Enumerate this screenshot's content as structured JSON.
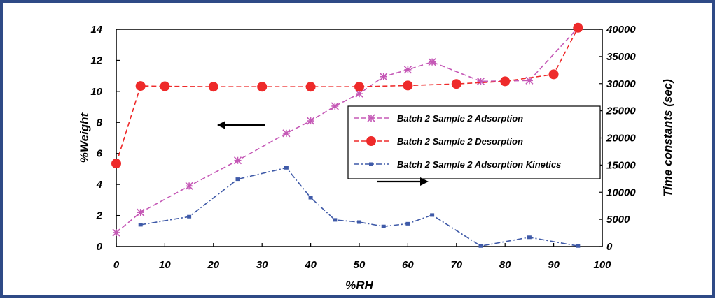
{
  "chart_data": {
    "type": "line",
    "xlabel": "%RH",
    "ylabel": "%Weight",
    "y2label": "Time constants (sec)",
    "xlim": [
      0,
      100
    ],
    "ylim": [
      0,
      14
    ],
    "y2lim": [
      0,
      40000
    ],
    "x_ticks": [
      0,
      10,
      20,
      30,
      40,
      50,
      60,
      70,
      80,
      90,
      100
    ],
    "y_ticks": [
      0,
      2,
      4,
      6,
      8,
      10,
      12,
      14
    ],
    "y2_ticks": [
      0,
      5000,
      10000,
      15000,
      20000,
      25000,
      30000,
      35000,
      40000
    ],
    "grid": false,
    "legend_position": "right",
    "series": [
      {
        "name": "Batch 2 Sample 2 Adsorption",
        "axis": "left",
        "color": "#c558b6",
        "dash": "dashed",
        "marker": "star",
        "x": [
          0,
          5,
          15,
          25,
          35,
          40,
          45,
          50,
          55,
          60,
          65,
          75,
          85,
          95
        ],
        "y": [
          0.9,
          2.2,
          3.9,
          5.55,
          7.3,
          8.1,
          9.05,
          9.85,
          10.95,
          11.4,
          11.9,
          10.65,
          10.7,
          14.1
        ]
      },
      {
        "name": "Batch 2 Sample 2 Desorption",
        "axis": "left",
        "color": "#ee2a2a",
        "dash": "dashed",
        "marker": "circle",
        "x": [
          0,
          5,
          10,
          20,
          30,
          40,
          50,
          60,
          70,
          80,
          90,
          95
        ],
        "y": [
          5.35,
          10.35,
          10.33,
          10.3,
          10.3,
          10.3,
          10.3,
          10.38,
          10.48,
          10.65,
          11.1,
          14.1
        ]
      },
      {
        "name": "Batch 2 Sample 2 Adsorption Kinetics",
        "axis": "right",
        "color": "#3f5aa8",
        "dash": "dashdot",
        "marker": "square",
        "x": [
          5,
          15,
          25,
          35,
          40,
          45,
          50,
          55,
          60,
          65,
          75,
          85,
          95
        ],
        "y": [
          4000,
          5500,
          12400,
          14500,
          9000,
          4900,
          4500,
          3700,
          4200,
          5800,
          100,
          1700,
          100
        ]
      }
    ],
    "annotations": [
      {
        "type": "arrow",
        "direction": "left",
        "points_to_axis": "left"
      },
      {
        "type": "arrow",
        "direction": "right",
        "points_to_axis": "right"
      }
    ]
  }
}
